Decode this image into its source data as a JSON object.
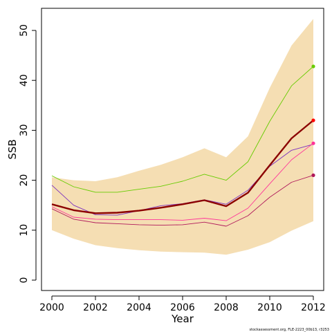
{
  "chart_data": {
    "type": "line",
    "xlabel": "Year",
    "ylabel": "SSB",
    "xlim": [
      2000,
      2012
    ],
    "ylim": [
      0,
      50
    ],
    "x_ticks": [
      "2000",
      "2002",
      "2004",
      "2006",
      "2008",
      "2010",
      "2012"
    ],
    "y_ticks": [
      "0",
      "10",
      "20",
      "30",
      "40",
      "50"
    ],
    "x": [
      2000,
      2001,
      2002,
      2003,
      2004,
      2005,
      2006,
      2007,
      2008,
      2009,
      2010,
      2011,
      2012
    ],
    "band": {
      "color": "#f5deb3",
      "lower": [
        10.0,
        8.3,
        7.0,
        6.4,
        6.0,
        5.7,
        5.6,
        5.5,
        5.1,
        6.1,
        7.6,
        9.9,
        11.8
      ],
      "upper": [
        20.6,
        20.0,
        19.8,
        20.6,
        21.9,
        23.1,
        24.6,
        26.4,
        24.6,
        28.8,
        38.5,
        47.0,
        52.3
      ]
    },
    "series": [
      {
        "color": "#66cc00",
        "width": 0.9,
        "endpoint": true,
        "values": [
          20.9,
          18.7,
          17.6,
          17.6,
          18.2,
          18.8,
          19.8,
          21.2,
          20.0,
          23.7,
          31.8,
          38.9,
          42.8
        ]
      },
      {
        "color": "#7b2fbf",
        "width": 0.9,
        "endpoint": false,
        "values": [
          19.0,
          15.0,
          13.1,
          13.0,
          13.9,
          14.9,
          15.3,
          16.1,
          15.2,
          18.0,
          22.8,
          26.0,
          27.2
        ]
      },
      {
        "color": "#ff3399",
        "width": 0.9,
        "endpoint": true,
        "values": [
          14.7,
          12.6,
          12.2,
          12.1,
          12.1,
          12.1,
          12.0,
          12.4,
          11.9,
          14.4,
          19.3,
          24.1,
          27.4
        ]
      },
      {
        "color": "#b0185a",
        "width": 0.9,
        "endpoint": true,
        "values": [
          14.3,
          12.2,
          11.5,
          11.3,
          11.1,
          11.0,
          11.1,
          11.6,
          10.8,
          12.9,
          16.6,
          19.6,
          21.0
        ]
      },
      {
        "color": "#8b0000",
        "width": 2.4,
        "endpoint": false,
        "values": [
          15.2,
          14.0,
          13.4,
          13.5,
          13.9,
          14.5,
          15.2,
          16.0,
          14.8,
          17.5,
          23.0,
          28.4,
          32.0
        ]
      },
      {
        "color": "#ff0000",
        "width": 0,
        "endpoint": true,
        "values": [
          null,
          null,
          null,
          null,
          null,
          null,
          null,
          null,
          null,
          null,
          null,
          null,
          32.0
        ]
      }
    ],
    "footer": "stockassessment.org, FLE-2223_00b13, r3253",
    "grid": false,
    "legend": "none"
  }
}
